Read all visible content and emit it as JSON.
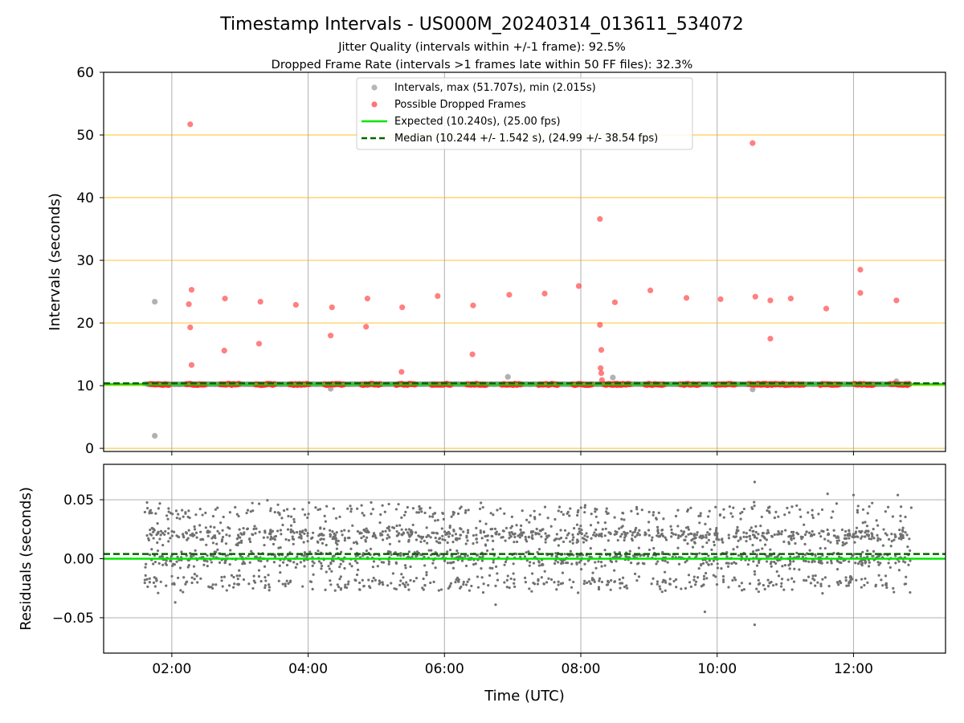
{
  "title": "Timestamp Intervals - US000M_20240314_013611_534072",
  "subtitle_1": "Jitter Quality (intervals within +/-1 frame): 92.5%",
  "subtitle_2": "Dropped Frame Rate (intervals >1 frames late within 50 FF files): 32.3%",
  "colors": {
    "intervals": "#9e9e9e",
    "dropped": "#ff2b2b",
    "expected": "#00e600",
    "median": "#006400",
    "residuals": "#707070",
    "threshold_lines": "#ffc94d",
    "grid": "#b0b0b0"
  },
  "chart_data": [
    {
      "type": "scatter",
      "panel": "top",
      "title": "",
      "xlabel": "",
      "ylabel": "Intervals (seconds)",
      "x_unit": "hours UTC",
      "xlim": [
        1.0,
        13.35
      ],
      "ylim": [
        -0.5,
        60
      ],
      "yticks": [
        0,
        10,
        20,
        30,
        40,
        50,
        60
      ],
      "grid": "x",
      "threshold_lines_y": [
        0,
        10,
        20,
        30,
        40,
        50
      ],
      "legend_position": "top-center",
      "legend": [
        "Intervals, max (51.707s), min (2.015s)",
        "Possible Dropped Frames",
        "Expected (10.240s), (25.00 fps)",
        "Median (10.244 +/- 1.542 s), (24.99 +/- 38.54 fps)"
      ],
      "baseline_band": {
        "x": [
          1.6,
          12.85
        ],
        "y": 10.24
      },
      "series": [
        {
          "name": "Intervals, max (51.707s), min (2.015s)",
          "points": [
            [
              1.75,
              23.4
            ],
            [
              1.75,
              2.0
            ],
            [
              4.33,
              9.5
            ],
            [
              6.93,
              11.4
            ],
            [
              8.47,
              11.3
            ],
            [
              10.52,
              9.4
            ],
            [
              12.63,
              10.7
            ]
          ]
        },
        {
          "name": "Possible Dropped Frames",
          "points": [
            [
              2.27,
              51.7
            ],
            [
              2.29,
              25.3
            ],
            [
              2.25,
              23.0
            ],
            [
              2.27,
              19.3
            ],
            [
              2.29,
              13.3
            ],
            [
              2.78,
              23.9
            ],
            [
              2.77,
              15.6
            ],
            [
              3.3,
              23.4
            ],
            [
              3.28,
              16.7
            ],
            [
              3.82,
              22.9
            ],
            [
              4.35,
              22.5
            ],
            [
              4.33,
              18.0
            ],
            [
              4.87,
              23.9
            ],
            [
              4.85,
              19.4
            ],
            [
              5.38,
              22.5
            ],
            [
              5.37,
              12.2
            ],
            [
              5.9,
              24.3
            ],
            [
              6.42,
              22.8
            ],
            [
              6.41,
              15.0
            ],
            [
              6.95,
              24.5
            ],
            [
              7.47,
              24.7
            ],
            [
              7.97,
              25.9
            ],
            [
              8.28,
              36.6
            ],
            [
              8.28,
              19.7
            ],
            [
              8.3,
              15.7
            ],
            [
              8.29,
              12.8
            ],
            [
              8.3,
              12.0
            ],
            [
              8.31,
              10.9
            ],
            [
              8.5,
              23.3
            ],
            [
              9.02,
              25.2
            ],
            [
              9.55,
              24.0
            ],
            [
              10.05,
              23.8
            ],
            [
              10.52,
              48.7
            ],
            [
              10.56,
              24.2
            ],
            [
              10.78,
              23.6
            ],
            [
              10.78,
              17.5
            ],
            [
              11.08,
              23.9
            ],
            [
              11.6,
              22.3
            ],
            [
              12.1,
              28.5
            ],
            [
              12.1,
              24.8
            ],
            [
              12.63,
              23.6
            ]
          ],
          "baseline_clusters_x": [
            1.82,
            2.35,
            2.85,
            3.37,
            3.87,
            4.38,
            4.92,
            5.43,
            5.95,
            6.47,
            6.98,
            7.52,
            8.02,
            8.48,
            8.58,
            9.08,
            9.6,
            10.12,
            10.6,
            10.72,
            10.85,
            11.13,
            11.65,
            12.15,
            12.68
          ],
          "baseline_y": 10.2
        },
        {
          "name": "Expected (10.240s), (25.00 fps)",
          "y": 10.24
        },
        {
          "name": "Median (10.244 +/- 1.542 s), (24.99 +/- 38.54 fps)",
          "y": 10.244
        }
      ]
    },
    {
      "type": "scatter",
      "panel": "bottom",
      "title": "",
      "xlabel": "Time (UTC)",
      "ylabel": "Residuals (seconds)",
      "x_unit": "hours UTC",
      "xlim": [
        1.0,
        13.35
      ],
      "ylim": [
        -0.08,
        0.08
      ],
      "yticks": [
        -0.05,
        0.0,
        0.05
      ],
      "ytick_labels": [
        "−0.05",
        "0.00",
        "0.05"
      ],
      "xticks": [
        2,
        4,
        6,
        8,
        10,
        12
      ],
      "xtick_labels": [
        "02:00",
        "04:00",
        "06:00",
        "08:00",
        "10:00",
        "12:00"
      ],
      "grid": "both",
      "residual_bands": {
        "x_range": [
          1.6,
          12.85
        ],
        "band_centers": [
          0.04,
          0.02,
          0.0,
          -0.02
        ],
        "band_weights": [
          0.12,
          0.38,
          0.32,
          0.18
        ],
        "spread": 0.004,
        "point_count": 2200
      },
      "outliers": [
        [
          10.55,
          0.065
        ],
        [
          10.55,
          -0.056
        ],
        [
          9.82,
          -0.045
        ],
        [
          6.75,
          -0.039
        ],
        [
          2.05,
          -0.037
        ],
        [
          12.0,
          0.054
        ],
        [
          11.62,
          0.055
        ],
        [
          12.65,
          0.054
        ]
      ],
      "series": [
        {
          "name": "Expected",
          "y": 0.0
        },
        {
          "name": "Median",
          "y": 0.004
        }
      ]
    }
  ]
}
